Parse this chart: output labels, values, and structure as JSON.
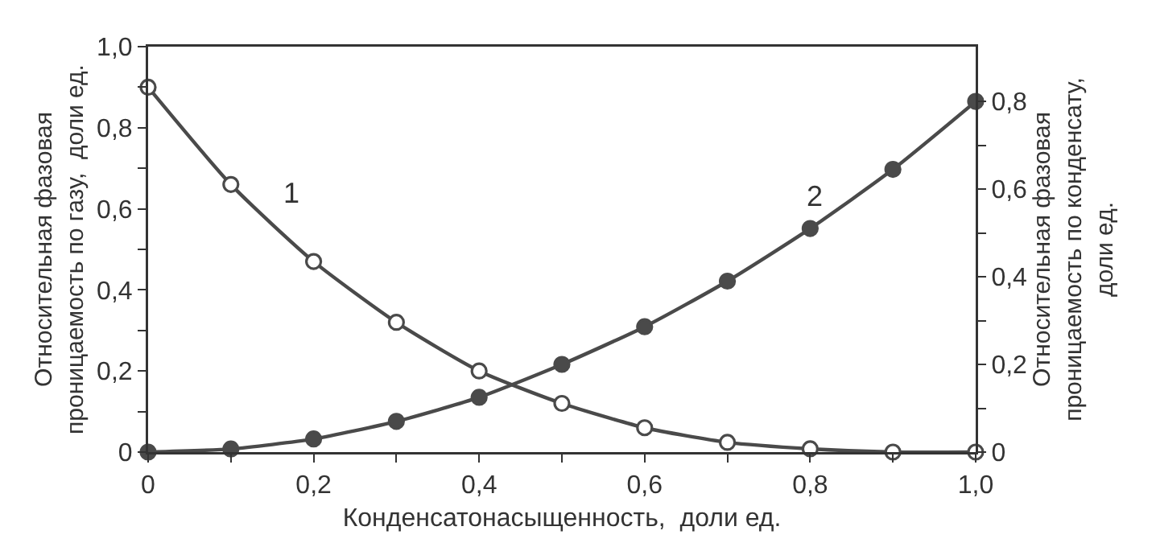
{
  "chart_data": {
    "type": "line",
    "xlabel": "Конденсатонасыщенность,  доли ед.",
    "ylabel": "Относительная фазовая\nпроницаемость по газу,  доли ед.",
    "y2label": "Относительная фазовая\nпроницаемость по конденсату,\nдоли ед.",
    "x": [
      0,
      0.1,
      0.2,
      0.3,
      0.4,
      0.5,
      0.6,
      0.7,
      0.8,
      0.9,
      1.0
    ],
    "series": [
      {
        "color": "#4a4a4a",
        "marker": "circle",
        "values": [
          0.9,
          0.66,
          0.47,
          0.32,
          0.2,
          0.12,
          0.06,
          0.024,
          0.008,
          0,
          0
        ]
      },
      {
        "color": "#4a4a4a",
        "marker": "circle",
        "axis": "y2",
        "values": [
          0,
          0.007,
          0.03,
          0.07,
          0.125,
          0.2,
          0.286,
          0.39,
          0.51,
          0.645,
          0.8
        ]
      }
    ],
    "annotations": [
      "1",
      "2"
    ],
    "xlim": [
      0,
      1.0
    ],
    "xticks": [
      0,
      {
        "value": 0.1,
        "label": null
      },
      {
        "value": 0.2,
        "label": "0,2"
      },
      {
        "value": 0.3,
        "label": null
      },
      {
        "value": 0.4,
        "label": "0,4"
      },
      {
        "value": 0.5,
        "label": null
      },
      {
        "value": 0.6,
        "label": "0,6"
      },
      {
        "value": 0.7,
        "label": null
      },
      {
        "value": 0.8,
        "label": "0,8"
      },
      {
        "value": 0.9,
        "label": null
      },
      {
        "value": 1.0,
        "label": "1,0"
      }
    ],
    "ylim": [
      0,
      1.0
    ],
    "yticks": [
      0,
      {
        "value": 0.1,
        "label": null
      },
      {
        "value": 0.2,
        "label": "0,2"
      },
      {
        "value": 0.3,
        "label": null
      },
      {
        "value": 0.4,
        "label": "0,4"
      },
      {
        "value": 0.5,
        "label": null
      },
      {
        "value": 0.6,
        "label": "0,6"
      },
      {
        "value": 0.7,
        "label": null
      },
      {
        "value": 0.8,
        "label": "0,8"
      },
      {
        "value": 0.9,
        "label": null
      },
      {
        "value": 1.0,
        "label": "1,0"
      }
    ],
    "y2lim": [
      0,
      0.925
    ],
    "y2ticks": [
      0,
      {
        "value": 0.1,
        "label": null
      },
      {
        "value": 0.2,
        "label": "0,2"
      },
      {
        "value": 0.3,
        "label": null
      },
      {
        "value": 0.4,
        "label": "0,4"
      },
      {
        "value": 0.5,
        "label": null
      },
      {
        "value": 0.6,
        "label": "0,6"
      },
      {
        "value": 0.7,
        "label": null
      },
      {
        "value": 0.8,
        "label": "0,8"
      }
    ],
    "grid": false,
    "line_style": "solid"
  }
}
